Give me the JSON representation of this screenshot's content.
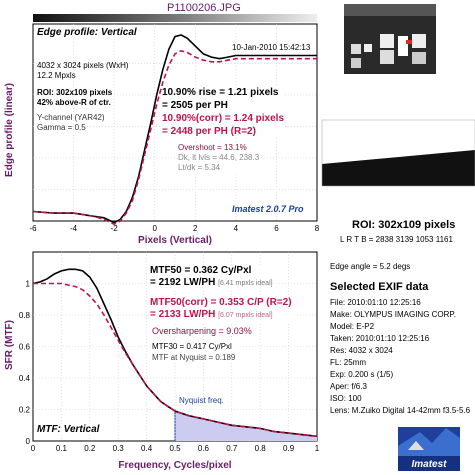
{
  "title": "P1100206.JPG",
  "edge_panel": {
    "heading": "Edge profile: Vertical",
    "date": "10-Jan-2010 15:42:13",
    "ylabel": "Edge profile (linear)",
    "xlabel": "Pixels (Vertical)",
    "info_lines": [
      "4032 x 3024 pixels (WxH)",
      "12.2 Mpxls"
    ],
    "roi_line1": "ROI: 302x109 pixels",
    "roi_line2": "42% above-R of ctr.",
    "channel": "Y-channel  (YAR42)",
    "gamma": "Gamma = 0.5",
    "rise_line1": "10.90% rise = 1.21 pixels",
    "rise_line2": "= 2505 per PH",
    "corr_line1": "10.90%(corr) = 1.24 pixels",
    "corr_line2": "= 2448 per PH  (R=2)",
    "overshoot": "Overshoot = 13.1%",
    "dk_lt": "Dk, lt lvls = 44.6, 238.3",
    "ltdk": "Lt/dk = 5.34",
    "version": "Imatest 2.0.7 Pro"
  },
  "mtf_panel": {
    "heading": "MTF: Vertical",
    "ylabel": "SFR (MTF)",
    "xlabel": "Frequency, Cycles/pixel",
    "mtf50": "MTF50 = 0.362 Cy/Pxl",
    "mtf50_lw": "= 2192 LW/PH",
    "mtf50_ideal": "[6.41 mpxls ideal]",
    "mtf50c": "MTF50(corr) = 0.353 C/P  (R=2)",
    "mtf50c_lw": "= 2133 LW/PH",
    "mtf50c_ideal": "[6.07 mpxls ideal]",
    "oversharp": "Oversharpening = 9.03%",
    "mtf30": "MTF30 = 0.417 Cy/Pxl",
    "nyq_mtf": "MTF at Nyquist = 0.189",
    "nyquist_label": "Nyquist freq."
  },
  "right_panel": {
    "roi_title": "ROI: 302x109 pixels",
    "lrtb": "L R T B = 2838 3139  1053 1161",
    "edge_angle": "Edge angle = 5.2 degs",
    "exif_title": "Selected EXIF data",
    "exif": [
      "File:   2010:01:10 12:25:16",
      "Make:  OLYMPUS IMAGING CORP.",
      "Model:  E-P2",
      "Taken:  2010:01:10 12:25:16",
      "Res:     4032 x 3024",
      "FL:     25mm",
      "Exp:     0.200 s  (1/5)",
      "Aper:    f/6.3",
      "ISO:     100",
      "Lens:  M.Zuiko Digital 14-42mm f3.5-5.6"
    ],
    "logo": "Imatest"
  },
  "colors": {
    "raw": "#000000",
    "corr": "#c0124f",
    "nyquist_fill": "#ccccf0",
    "nyquist_text": "#1a3fa0",
    "heading_purple": "#6a1b6a"
  },
  "chart_data": [
    {
      "type": "line",
      "title": "Edge profile: Vertical",
      "xlabel": "Pixels (Vertical)",
      "ylabel": "Edge profile (linear)",
      "xlim": [
        -6,
        8
      ],
      "ylim": [
        0,
        1.25
      ],
      "xticks": [
        -6,
        -4,
        -2,
        0,
        2,
        4,
        6,
        8
      ],
      "grid": true,
      "series": [
        {
          "color": "#000000",
          "dash": "solid",
          "x": [
            -6,
            -5,
            -4,
            -3,
            -2.5,
            -2,
            -1.7,
            -1.4,
            -1.1,
            -0.8,
            -0.5,
            -0.2,
            0.1,
            0.4,
            0.7,
            1.0,
            1.3,
            1.6,
            2.0,
            2.4,
            2.8,
            3.2,
            3.6,
            4,
            5,
            6,
            7,
            8
          ],
          "y": [
            0.06,
            0.05,
            0.05,
            0.03,
            0.02,
            -0.01,
            0.01,
            0.06,
            0.15,
            0.28,
            0.45,
            0.62,
            0.8,
            0.96,
            1.09,
            1.17,
            1.18,
            1.16,
            1.11,
            1.06,
            1.04,
            1.03,
            1.04,
            1.05,
            1.05,
            1.05,
            1.05,
            1.05
          ]
        },
        {
          "color": "#c0124f",
          "dash": "dashed",
          "x": [
            -6,
            -5,
            -4,
            -3,
            -2.5,
            -2,
            -1.7,
            -1.4,
            -1.1,
            -0.8,
            -0.5,
            -0.2,
            0.1,
            0.4,
            0.7,
            1.0,
            1.3,
            1.6,
            2.0,
            2.4,
            2.8,
            3.2,
            3.6,
            4,
            5,
            6,
            7,
            8
          ],
          "y": [
            0.06,
            0.05,
            0.05,
            0.03,
            0.01,
            -0.02,
            0.0,
            0.05,
            0.13,
            0.26,
            0.42,
            0.58,
            0.74,
            0.88,
            0.99,
            1.06,
            1.08,
            1.07,
            1.04,
            1.02,
            1.01,
            1.01,
            1.02,
            1.03,
            1.03,
            1.03,
            1.03,
            1.03
          ]
        }
      ]
    },
    {
      "type": "line",
      "title": "MTF: Vertical",
      "xlabel": "Frequency, Cycles/pixel",
      "ylabel": "SFR (MTF)",
      "xlim": [
        0,
        1
      ],
      "ylim": [
        0,
        1.2
      ],
      "xticks": [
        0,
        0.1,
        0.2,
        0.3,
        0.4,
        0.5,
        0.6,
        0.7,
        0.8,
        0.9,
        1
      ],
      "yticks": [
        0,
        0.2,
        0.4,
        0.6,
        0.8,
        1
      ],
      "nyquist": 0.5,
      "grid": true,
      "series": [
        {
          "color": "#000000",
          "dash": "solid",
          "x": [
            0,
            0.025,
            0.05,
            0.075,
            0.1,
            0.125,
            0.15,
            0.175,
            0.2,
            0.225,
            0.25,
            0.275,
            0.3,
            0.325,
            0.35,
            0.375,
            0.4,
            0.425,
            0.45,
            0.475,
            0.5,
            0.55,
            0.6,
            0.65,
            0.7,
            0.75,
            0.8,
            0.85,
            0.9,
            0.95,
            1.0
          ],
          "y": [
            1.0,
            1.01,
            1.03,
            1.06,
            1.08,
            1.09,
            1.09,
            1.08,
            1.04,
            0.97,
            0.87,
            0.77,
            0.66,
            0.57,
            0.49,
            0.42,
            0.35,
            0.3,
            0.25,
            0.22,
            0.19,
            0.16,
            0.14,
            0.12,
            0.1,
            0.09,
            0.08,
            0.06,
            0.05,
            0.04,
            0.03
          ]
        },
        {
          "color": "#c0124f",
          "dash": "dashed",
          "x": [
            0,
            0.025,
            0.05,
            0.075,
            0.1,
            0.125,
            0.15,
            0.175,
            0.2,
            0.225,
            0.25,
            0.275,
            0.3,
            0.325,
            0.35,
            0.375,
            0.4,
            0.425,
            0.45,
            0.475,
            0.5,
            0.55,
            0.6,
            0.65,
            0.7,
            0.75,
            0.8,
            0.85,
            0.9,
            0.95,
            1.0
          ],
          "y": [
            1.0,
            1.0,
            1.0,
            1.0,
            1.0,
            0.99,
            0.98,
            0.96,
            0.92,
            0.87,
            0.8,
            0.72,
            0.64,
            0.56,
            0.49,
            0.42,
            0.35,
            0.3,
            0.25,
            0.22,
            0.19,
            0.16,
            0.14,
            0.12,
            0.1,
            0.09,
            0.08,
            0.06,
            0.05,
            0.04,
            0.03
          ]
        }
      ]
    }
  ]
}
